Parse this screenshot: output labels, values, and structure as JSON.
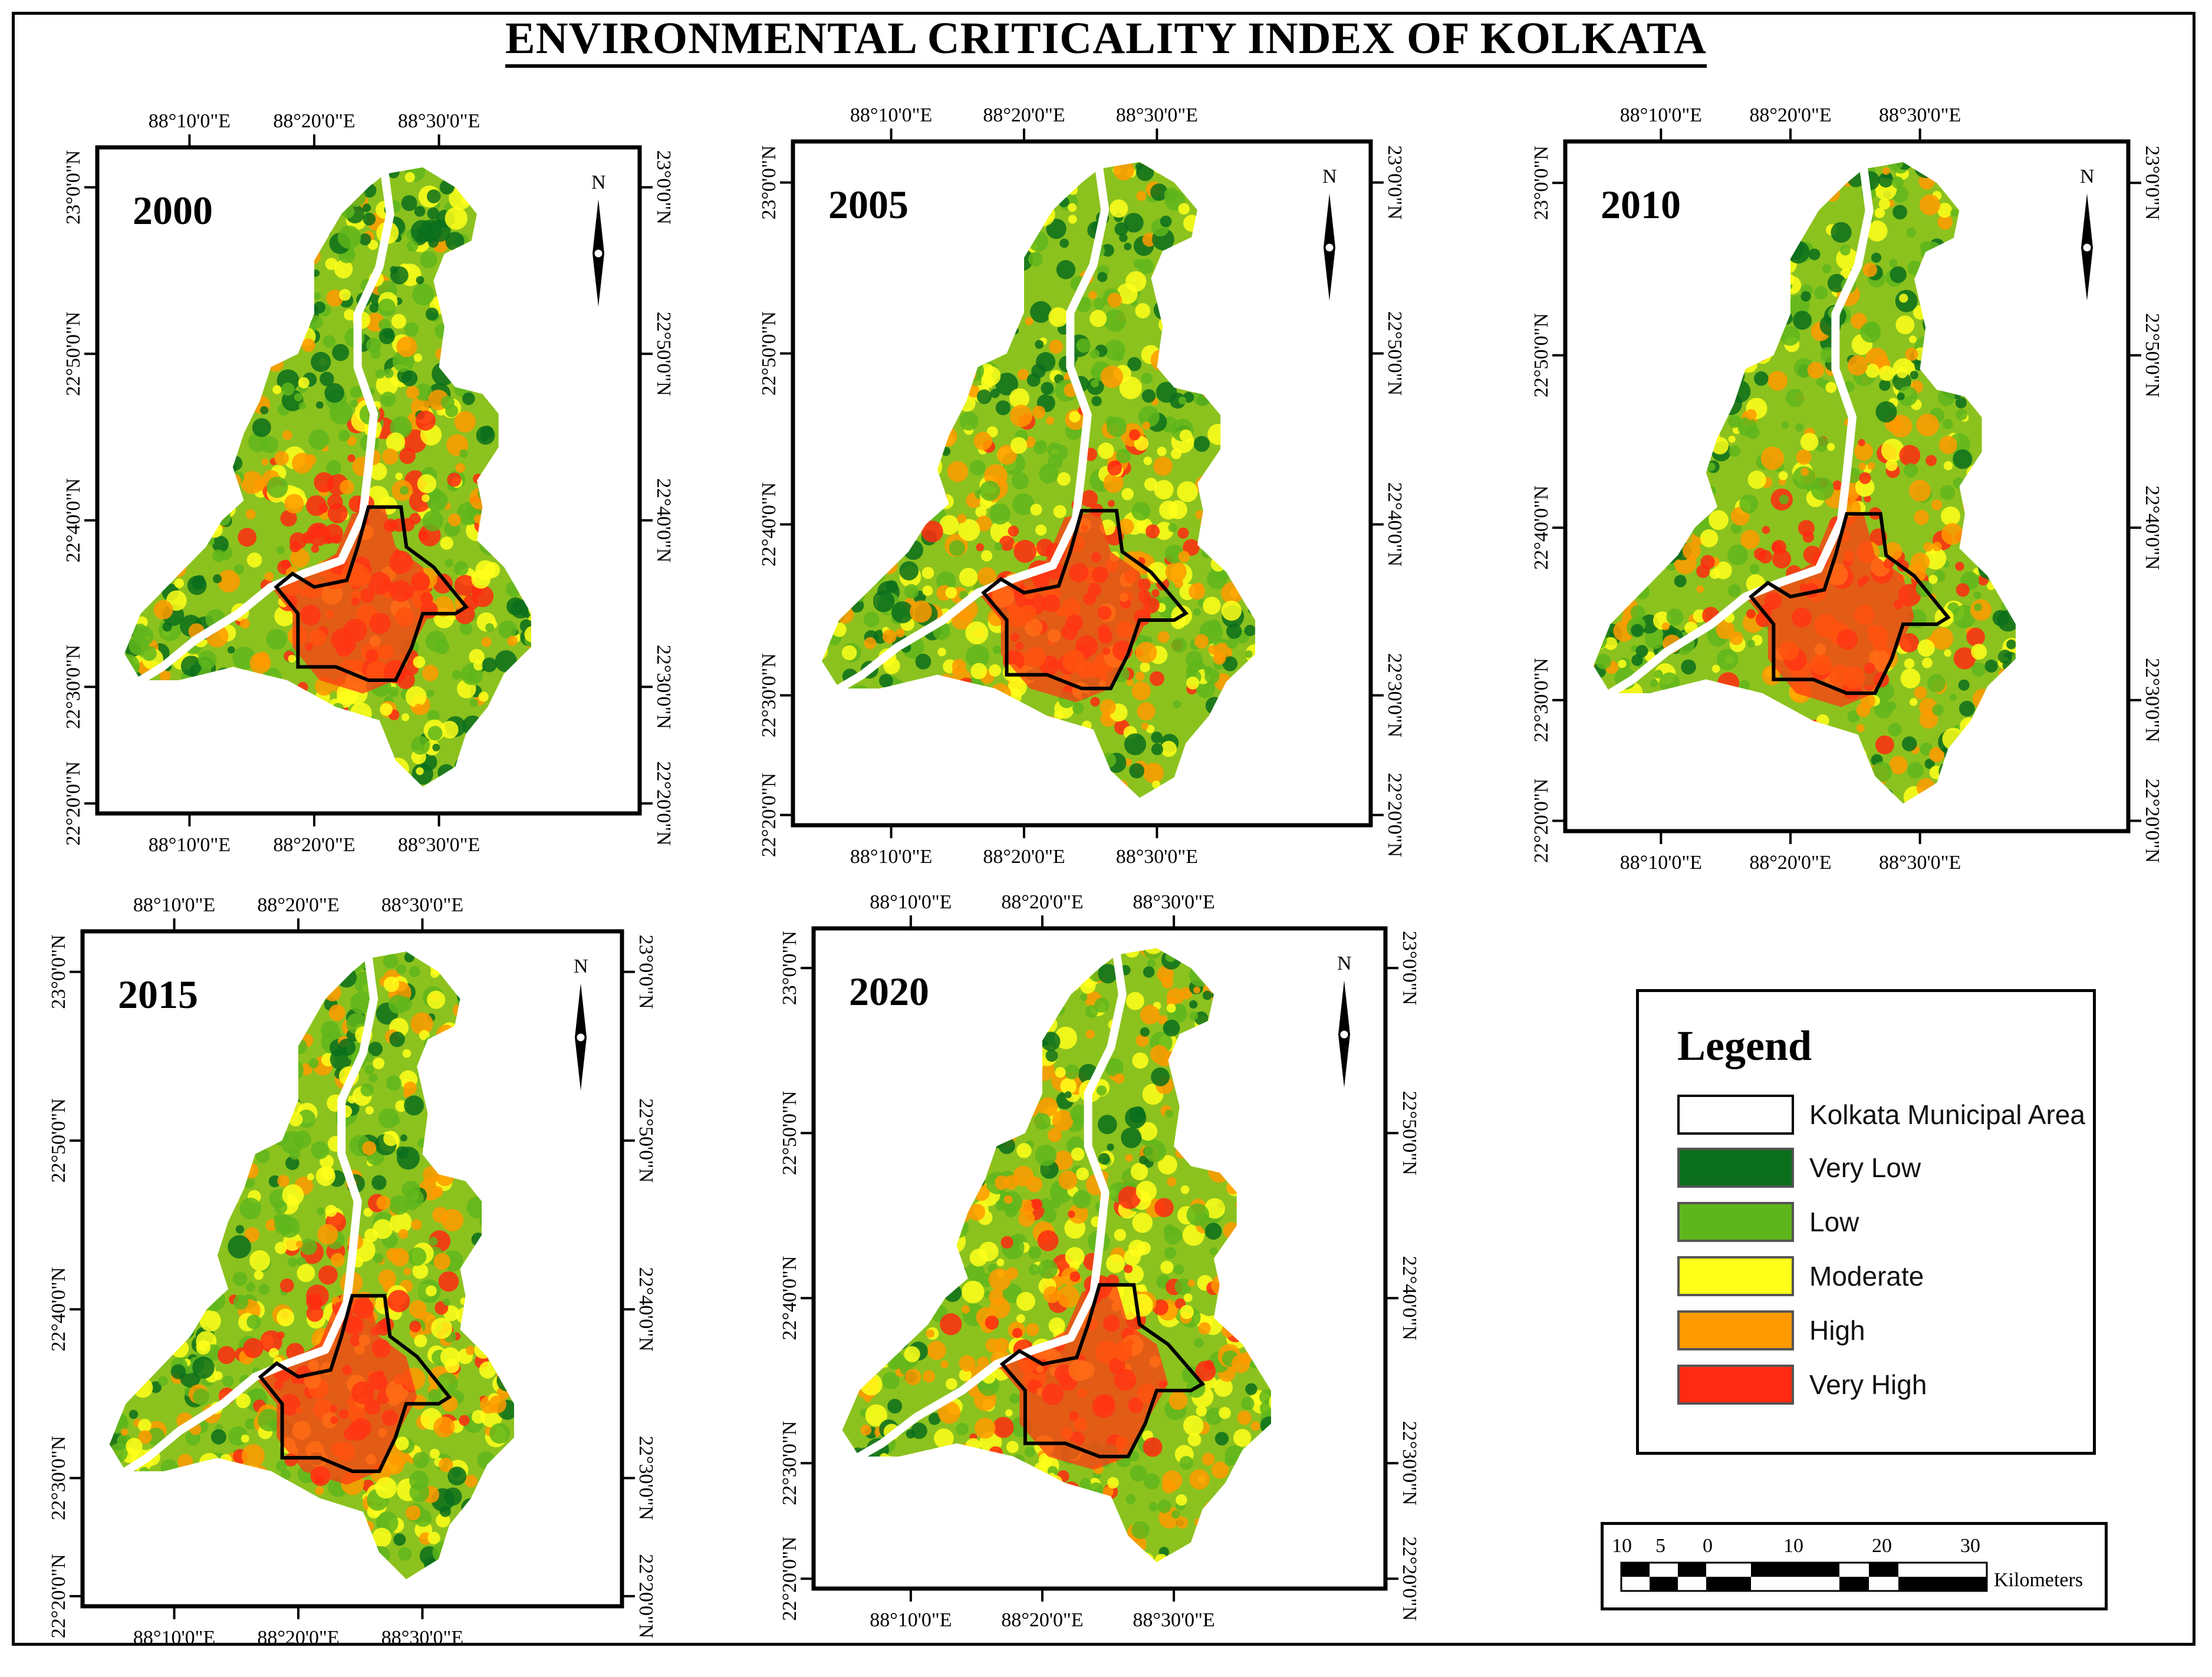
{
  "title": "ENVIRONMENTAL CRITICALITY INDEX OF KOLKATA",
  "panels": [
    {
      "year": "2000"
    },
    {
      "year": "2005"
    },
    {
      "year": "2010"
    },
    {
      "year": "2015"
    },
    {
      "year": "2020"
    }
  ],
  "graticule": {
    "lon_labels": [
      "88°10'0\"E",
      "88°20'0\"E",
      "88°30'0\"E"
    ],
    "lat_labels": [
      "23°0'0\"N",
      "22°50'0\"N",
      "22°40'0\"N",
      "22°30'0\"N",
      "22°20'0\"N"
    ]
  },
  "north_arrow": {
    "label": "N"
  },
  "legend": {
    "title": "Legend",
    "items": [
      {
        "label": "Kolkata Municipal Area",
        "color": "#ffffff"
      },
      {
        "label": "Very Low",
        "color": "#0b6e1c"
      },
      {
        "label": "Low",
        "color": "#5fb61c"
      },
      {
        "label": "Moderate",
        "color": "#ffff1a"
      },
      {
        "label": "High",
        "color": "#ff9a00"
      },
      {
        "label": "Very High",
        "color": "#ff2a12"
      }
    ]
  },
  "scale": {
    "labels": [
      "10",
      "5",
      "0",
      "10",
      "20",
      "30"
    ],
    "units": "Kilometers"
  }
}
